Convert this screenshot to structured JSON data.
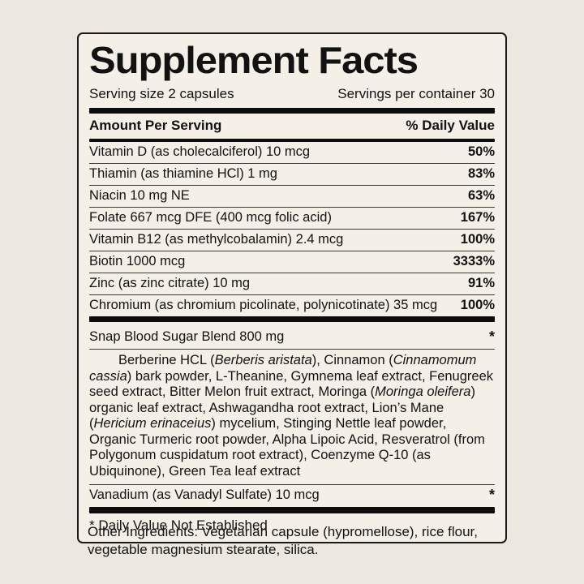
{
  "colors": {
    "page_background": "#ece8e0",
    "panel_background": "#f4f0e8",
    "ink": "#121212"
  },
  "label": {
    "title": "Supplement Facts",
    "serving_size": "Serving size 2 capsules",
    "servings_per_container": "Servings per container 30",
    "amount_header": "Amount Per Serving",
    "dv_header": "% Daily Value",
    "nutrients": [
      {
        "name": "Vitamin D (as cholecalciferol) 10 mcg",
        "dv": "50%"
      },
      {
        "name": "Thiamin (as thiamine HCl) 1 mg",
        "dv": "83%"
      },
      {
        "name": "Niacin 10 mg NE",
        "dv": "63%"
      },
      {
        "name": "Folate 667 mcg DFE (400 mcg folic acid)",
        "dv": "167%"
      },
      {
        "name": "Vitamin B12 (as methylcobalamin) 2.4 mcg",
        "dv": "100%"
      },
      {
        "name": "Biotin 1000 mcg",
        "dv": "3333%"
      },
      {
        "name": "Zinc (as zinc citrate) 10 mg",
        "dv": "91%"
      },
      {
        "name": "Chromium (as chromium picolinate, polynicotinate) 35 mcg",
        "dv": "100%"
      }
    ],
    "blend": {
      "name": "Snap Blood Sugar Blend 800 mg",
      "dv": "*",
      "segments": [
        {
          "text": "Berberine HCL (",
          "italic": false
        },
        {
          "text": "Berberis aristata",
          "italic": true
        },
        {
          "text": "), Cinnamon (",
          "italic": false
        },
        {
          "text": "Cinnamomum cassia",
          "italic": true
        },
        {
          "text": ") bark powder, L-Theanine, Gymnema leaf extract, Fenugreek seed extract, Bitter Melon fruit extract, Moringa (",
          "italic": false
        },
        {
          "text": "Moringa oleifera",
          "italic": true
        },
        {
          "text": ") organic leaf extract, Ashwagandha root extract, Lion’s Mane (",
          "italic": false
        },
        {
          "text": "Hericium erinaceius",
          "italic": true
        },
        {
          "text": ") mycelium, Stinging Nettle leaf powder, Organic Turmeric root powder, Alpha Lipoic Acid, Resveratrol (from Polygonum cuspidatum root extract), Coenzyme Q-10 (as Ubiquinone), Green Tea leaf extract",
          "italic": false
        }
      ]
    },
    "vanadium": {
      "name": "Vanadium (as Vanadyl Sulfate) 10 mcg",
      "dv": "*"
    },
    "footnote": "* Daily Value Not Established"
  },
  "other_ingredients": "Other Ingredients: Vegetarian capsule (hypromellose), rice flour, vegetable magnesium stearate, silica."
}
